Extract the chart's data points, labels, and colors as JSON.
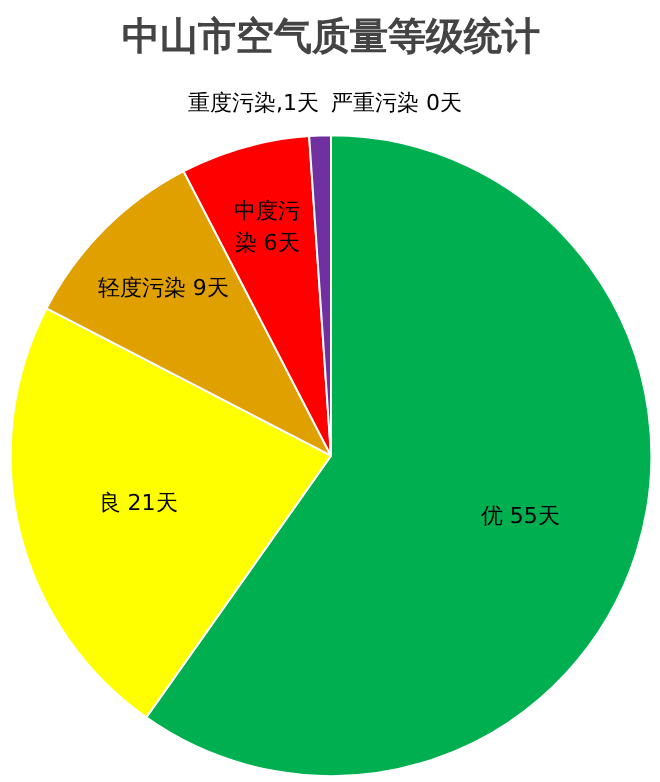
{
  "chart_data": {
    "type": "pie",
    "title": "中山市空气质量等级统计",
    "categories": [
      "优",
      "良",
      "轻度污染",
      "中度污染",
      "重度污染",
      "严重污染"
    ],
    "values": [
      55,
      21,
      9,
      6,
      1,
      0
    ],
    "colors": [
      "#00b050",
      "#ffff00",
      "#e0a000",
      "#ff0000",
      "#7030a0",
      "#7e0023"
    ],
    "value_labels": [
      " 55天",
      " 21天",
      " 9天",
      " 6天",
      ",1天",
      " 0天"
    ],
    "legend": false
  }
}
